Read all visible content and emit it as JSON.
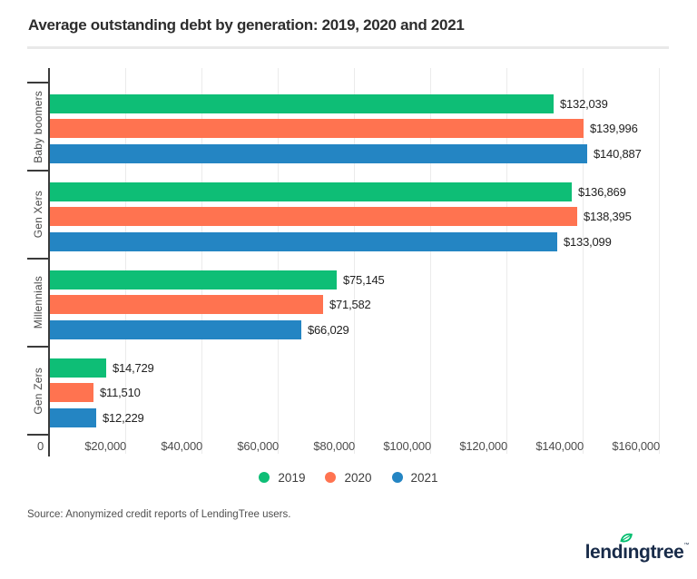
{
  "title": "Average outstanding debt by generation: 2019, 2020 and 2021",
  "source": "Source: Anonymized credit reports of LendingTree users.",
  "logo": {
    "text_pre": "lend",
    "text_i": "ı",
    "text_post": "ngtree",
    "mark": "™",
    "navy": "#182b49",
    "leaf_green": "#00bd6e"
  },
  "colors": {
    "green_2019": "#0ebe76",
    "orange_2020": "#ff7350",
    "blue_2021": "#2485c3",
    "grid": "#ebebeb",
    "axis": "#3b3b3b",
    "title_text": "#2d2d2d"
  },
  "chart_data": {
    "type": "bar",
    "orientation": "horizontal",
    "title": "Average outstanding debt by generation: 2019, 2020 and 2021",
    "xlabel": "",
    "ylabel": "",
    "grid": true,
    "legend_position": "bottom",
    "categories": [
      "Baby boomers",
      "Gen Xers",
      "Millennials",
      "Gen Zers"
    ],
    "series": [
      {
        "name": "2019",
        "color": "#0ebe76",
        "values": [
          132039,
          136869,
          75145,
          14729
        ],
        "labels": [
          "$132,039",
          "$136,869",
          "$75,145",
          "$14,729"
        ]
      },
      {
        "name": "2020",
        "color": "#ff7350",
        "values": [
          139996,
          138395,
          71582,
          11510
        ],
        "labels": [
          "$139,996",
          "$138,395",
          "$71,582",
          "$11,510"
        ]
      },
      {
        "name": "2021",
        "color": "#2485c3",
        "values": [
          140887,
          133099,
          66029,
          12229
        ],
        "labels": [
          "$140,887",
          "$133,099",
          "$66,029",
          "$12,229"
        ]
      }
    ],
    "x_ticks": [
      "0",
      "$20,000",
      "$40,000",
      "$60,000",
      "$80,000",
      "$100,000",
      "$120,000",
      "$140,000",
      "$160,000"
    ],
    "x_tick_interval": 20000,
    "x_max": 160000
  }
}
